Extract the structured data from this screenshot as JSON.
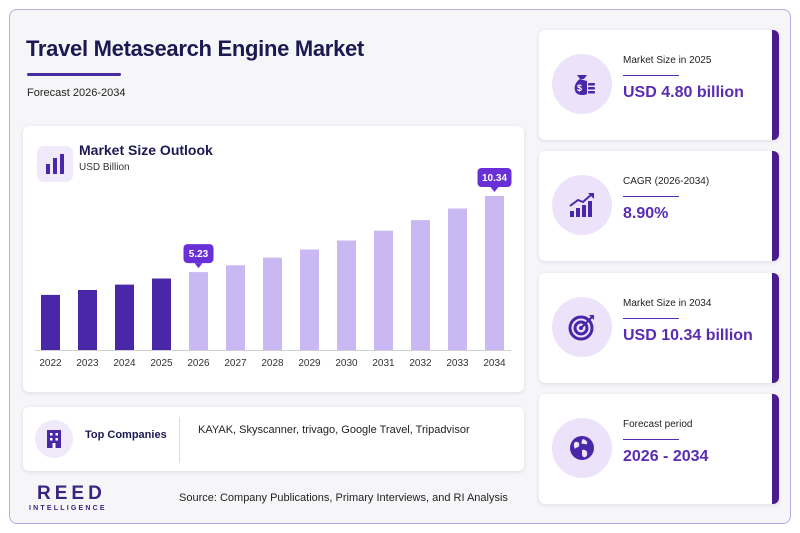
{
  "header": {
    "title": "Travel Metasearch Engine Market",
    "subtitle": "Forecast 2026-2034"
  },
  "colors": {
    "accent": "#5a2cb4",
    "bar_historic": "#4a27a8",
    "bar_forecast": "#c9b8f2",
    "label_bubble": "#6a30d8",
    "title": "#1b1852"
  },
  "chart_data": {
    "type": "bar",
    "title": "Market Size Outlook",
    "ylabel": "USD Billion",
    "categories": [
      "2022",
      "2023",
      "2024",
      "2025",
      "2026",
      "2027",
      "2028",
      "2029",
      "2030",
      "2031",
      "2032",
      "2033",
      "2034"
    ],
    "values": [
      3.7,
      4.03,
      4.39,
      4.8,
      5.23,
      5.69,
      6.2,
      6.75,
      7.35,
      8.01,
      8.72,
      9.5,
      10.34
    ],
    "historic_count": 4,
    "data_labels": [
      {
        "category": "2026",
        "text": "5.23"
      },
      {
        "category": "2034",
        "text": "10.34"
      }
    ],
    "ylim": [
      0,
      10.34
    ],
    "grid": false,
    "legend": "none"
  },
  "companies": {
    "label": "Top Companies",
    "list": "KAYAK, Skyscanner, trivago, Google Travel, Tripadvisor"
  },
  "stats": [
    {
      "label": "Market Size in 2025",
      "value": "USD 4.80 billion",
      "icon": "money-bag-icon"
    },
    {
      "label": "CAGR (2026-2034)",
      "value": "8.90%",
      "icon": "growth-chart-icon"
    },
    {
      "label": "Market Size in 2034",
      "value": "USD 10.34 billion",
      "icon": "target-icon"
    },
    {
      "label": "Forecast period",
      "value": "2026 - 2034",
      "icon": "globe-icon"
    }
  ],
  "footer": {
    "logo_main": "REED",
    "logo_sub": "INTELLIGENCE",
    "source": "Source: Company Publications, Primary Interviews, and RI Analysis"
  }
}
